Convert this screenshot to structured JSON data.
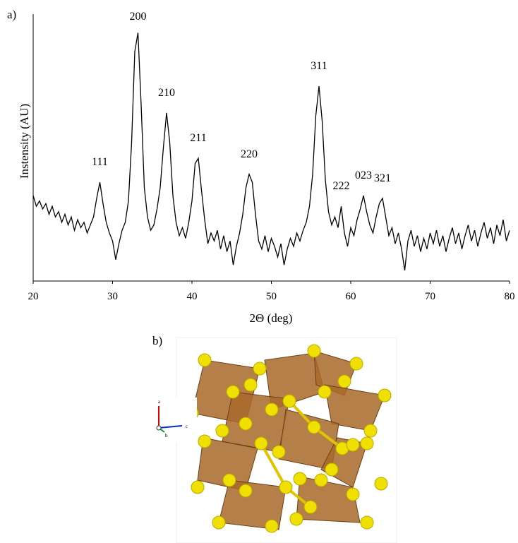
{
  "chart_data": {
    "type": "line",
    "panel_label": "a)",
    "xlabel": "2Θ (deg)",
    "ylabel": "Instensity (AU)",
    "xlim": [
      20,
      80
    ],
    "xticks": [
      20,
      30,
      40,
      50,
      60,
      70,
      80
    ],
    "ylim": [
      0,
      100
    ],
    "color": "#000000",
    "x": [
      20.0,
      20.4,
      20.8,
      21.2,
      21.6,
      22.0,
      22.4,
      22.8,
      23.2,
      23.6,
      24.0,
      24.4,
      24.8,
      25.2,
      25.6,
      26.0,
      26.4,
      26.8,
      27.2,
      27.6,
      28.0,
      28.4,
      28.8,
      29.2,
      29.6,
      30.0,
      30.4,
      30.8,
      31.2,
      31.6,
      32.0,
      32.4,
      32.8,
      33.2,
      33.6,
      34.0,
      34.4,
      34.8,
      35.2,
      35.6,
      36.0,
      36.4,
      36.8,
      37.2,
      37.6,
      38.0,
      38.4,
      38.8,
      39.2,
      39.6,
      40.0,
      40.4,
      40.8,
      41.2,
      41.6,
      42.0,
      42.4,
      42.8,
      43.2,
      43.6,
      44.0,
      44.4,
      44.8,
      45.2,
      45.6,
      46.0,
      46.4,
      46.8,
      47.2,
      47.6,
      48.0,
      48.4,
      48.8,
      49.2,
      49.6,
      50.0,
      50.4,
      50.8,
      51.2,
      51.6,
      52.0,
      52.4,
      52.8,
      53.2,
      53.6,
      54.0,
      54.4,
      54.8,
      55.2,
      55.6,
      56.0,
      56.4,
      56.8,
      57.2,
      57.6,
      58.0,
      58.4,
      58.8,
      59.2,
      59.6,
      60.0,
      60.4,
      60.8,
      61.2,
      61.6,
      62.0,
      62.4,
      62.8,
      63.2,
      63.6,
      64.0,
      64.4,
      64.8,
      65.2,
      65.6,
      66.0,
      66.4,
      66.8,
      67.2,
      67.6,
      68.0,
      68.4,
      68.8,
      69.2,
      69.6,
      70.0,
      70.4,
      70.8,
      71.2,
      71.6,
      72.0,
      72.4,
      72.8,
      73.2,
      73.6,
      74.0,
      74.4,
      74.8,
      75.2,
      75.6,
      76.0,
      76.4,
      76.8,
      77.2,
      77.6,
      78.0,
      78.4,
      78.8,
      79.2,
      79.6,
      80.0
    ],
    "values": [
      32,
      28,
      30,
      27,
      29,
      25,
      28,
      24,
      26,
      22,
      25,
      21,
      24,
      19,
      23,
      20,
      22,
      18,
      21,
      24,
      31,
      37,
      29,
      22,
      18,
      15,
      8,
      14,
      19,
      22,
      30,
      52,
      86,
      93,
      66,
      35,
      24,
      19,
      21,
      27,
      35,
      50,
      63,
      52,
      32,
      22,
      17,
      20,
      16,
      22,
      30,
      44,
      46,
      34,
      23,
      14,
      18,
      15,
      19,
      12,
      17,
      11,
      15,
      6,
      13,
      18,
      25,
      35,
      40,
      37,
      25,
      15,
      12,
      17,
      11,
      16,
      13,
      9,
      14,
      6,
      12,
      16,
      13,
      18,
      15,
      19,
      22,
      28,
      40,
      62,
      73,
      60,
      38,
      26,
      21,
      24,
      20,
      28,
      18,
      13,
      20,
      17,
      23,
      27,
      32,
      26,
      21,
      18,
      24,
      29,
      31,
      24,
      17,
      20,
      14,
      18,
      12,
      4,
      15,
      19,
      13,
      17,
      11,
      16,
      12,
      18,
      14,
      19,
      13,
      17,
      11,
      16,
      20,
      14,
      18,
      12,
      17,
      21,
      15,
      19,
      13,
      18,
      22,
      16,
      20,
      14,
      21,
      17,
      23,
      15,
      19
    ],
    "annotations": [
      {
        "text": "111",
        "x": 28.4
      },
      {
        "text": "200",
        "x": 33.2
      },
      {
        "text": "210",
        "x": 36.8
      },
      {
        "text": "211",
        "x": 40.8
      },
      {
        "text": "220",
        "x": 47.2
      },
      {
        "text": "311",
        "x": 56.0
      },
      {
        "text": "222",
        "x": 58.8
      },
      {
        "text": "023",
        "x": 61.6
      },
      {
        "text": "321",
        "x": 64.0
      }
    ]
  },
  "structure": {
    "panel_label": "b)",
    "axes": [
      "a",
      "b",
      "c"
    ]
  }
}
